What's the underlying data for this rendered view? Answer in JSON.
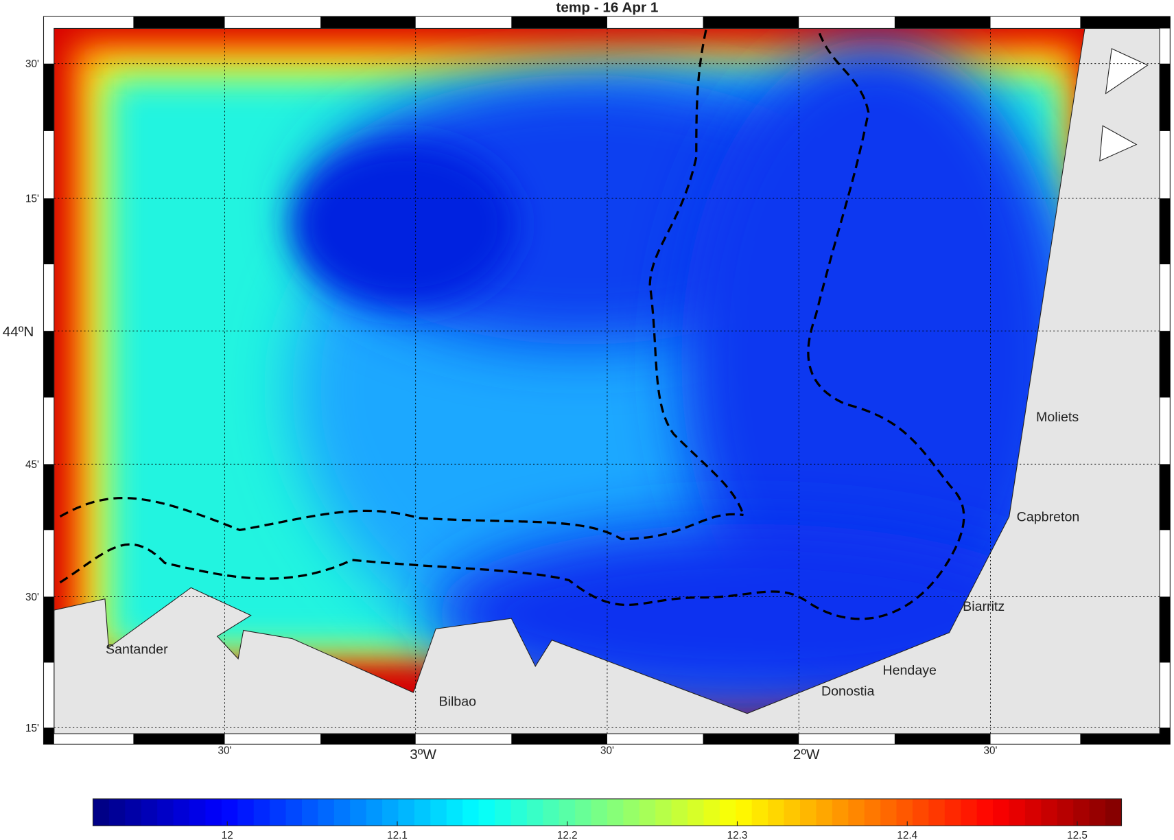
{
  "title": "temp - 16 Apr 1",
  "lat_labels": [
    "30'",
    "15'",
    "44ºN",
    "45'",
    "30'",
    "15'"
  ],
  "lon_labels": [
    "30'",
    "3ºW",
    "30'",
    "2ºW",
    "30'"
  ],
  "places": [
    "Santander",
    "Bilbao",
    "Donostia",
    "Hendaye",
    "Biarritz",
    "Capbreton",
    "Moliets"
  ],
  "colorbar": {
    "lim": [
      11.921,
      12.526
    ],
    "ticks": [
      12,
      12.1,
      12.2,
      12.3,
      12.4,
      12.5
    ]
  }
}
